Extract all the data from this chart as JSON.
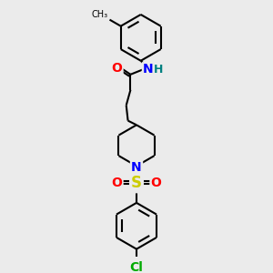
{
  "background_color": "#ebebeb",
  "bond_color": "#000000",
  "atom_colors": {
    "O": "#ff0000",
    "N": "#0000ff",
    "NH": "#008080",
    "S": "#cccc00",
    "Cl": "#00aa00"
  },
  "font_size": 9,
  "fig_width": 3.0,
  "fig_height": 3.0,
  "dpi": 100
}
